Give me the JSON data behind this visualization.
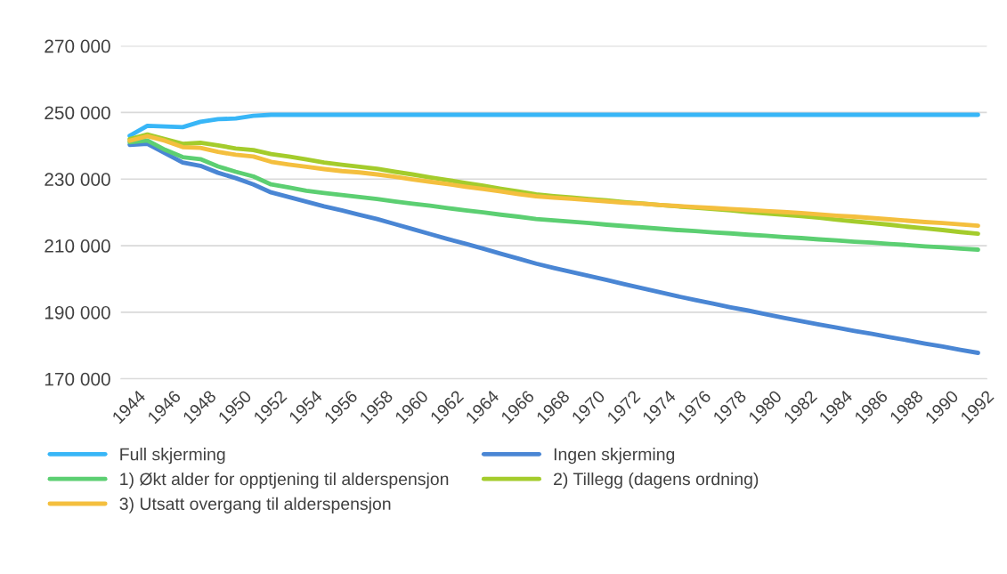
{
  "chart_data": {
    "type": "line",
    "categories": [
      "1944",
      null,
      "1946",
      null,
      "1948",
      null,
      "1950",
      null,
      "1952",
      null,
      "1954",
      null,
      "1956",
      null,
      "1958",
      null,
      "1960",
      null,
      "1962",
      null,
      "1964",
      null,
      "1966",
      null,
      "1968",
      null,
      "1970",
      null,
      "1972",
      null,
      "1974",
      null,
      "1976",
      null,
      "1978",
      null,
      "1980",
      null,
      "1982",
      null,
      "1984",
      null,
      "1986",
      null,
      "1988",
      null,
      "1990",
      null,
      "1992"
    ],
    "ylim": [
      170000,
      270000
    ],
    "yticks": [
      {
        "value": 170000,
        "label": "170 000"
      },
      {
        "value": 190000,
        "label": "190 000"
      },
      {
        "value": 210000,
        "label": "210 000"
      },
      {
        "value": 230000,
        "label": "230 000"
      },
      {
        "value": 250000,
        "label": "250 000"
      },
      {
        "value": 270000,
        "label": "270 000"
      }
    ],
    "grid": "y",
    "legend": "bottom",
    "marker": "none",
    "line_style": "solid",
    "series": [
      {
        "name": "Full skjerming",
        "color": "#38b6f7",
        "values": [
          243000,
          246000,
          245800,
          245600,
          247200,
          248000,
          248200,
          249000,
          249300,
          249300,
          249300,
          249300,
          249300,
          249300,
          249300,
          249300,
          249300,
          249300,
          249300,
          249300,
          249300,
          249300,
          249300,
          249300,
          249300,
          249300,
          249300,
          249300,
          249300,
          249300,
          249300,
          249300,
          249300,
          249300,
          249300,
          249300,
          249300,
          249300,
          249300,
          249300,
          249300,
          249300,
          249300,
          249300,
          249300,
          249300,
          249300,
          249300,
          249300
        ]
      },
      {
        "name": "Ingen skjerming",
        "color": "#4a86d4",
        "values": [
          240300,
          240600,
          237800,
          235000,
          234000,
          231900,
          230300,
          228400,
          226000,
          224600,
          223200,
          221800,
          220600,
          219300,
          218000,
          216500,
          215000,
          213500,
          212000,
          210600,
          209100,
          207600,
          206100,
          204600,
          203300,
          202100,
          200900,
          199700,
          198400,
          197200,
          196000,
          194800,
          193700,
          192600,
          191500,
          190500,
          189400,
          188300,
          187300,
          186300,
          185400,
          184400,
          183500,
          182500,
          181600,
          180600,
          179700,
          178700,
          177800
        ]
      },
      {
        "name": "1) Økt alder for opptjening til alderspensjon",
        "color": "#5ccf72",
        "values": [
          241100,
          241600,
          238800,
          236600,
          236000,
          233800,
          232200,
          230800,
          228400,
          227500,
          226500,
          225800,
          225200,
          224600,
          224000,
          223300,
          222600,
          222000,
          221300,
          220600,
          220000,
          219300,
          218700,
          218000,
          217600,
          217200,
          216800,
          216300,
          215900,
          215500,
          215100,
          214700,
          214400,
          214000,
          213700,
          213300,
          213000,
          212600,
          212300,
          211900,
          211600,
          211200,
          210900,
          210500,
          210200,
          209800,
          209500,
          209100,
          208800
        ]
      },
      {
        "name": "2) Tillegg (dagens ordning)",
        "color": "#a4cc2c",
        "values": [
          242000,
          243400,
          242000,
          240600,
          240900,
          240100,
          239200,
          238700,
          237500,
          236800,
          235900,
          235000,
          234300,
          233700,
          233100,
          232200,
          231400,
          230500,
          229700,
          228800,
          228000,
          227100,
          226300,
          225400,
          224900,
          224500,
          224000,
          223600,
          223100,
          222700,
          222200,
          221800,
          221400,
          221000,
          220600,
          220100,
          219700,
          219300,
          218900,
          218400,
          217800,
          217300,
          216800,
          216300,
          215700,
          215200,
          214700,
          214100,
          213600
        ]
      },
      {
        "name": "3) Utsatt overgang til alderspensjon",
        "color": "#f4bf3e",
        "values": [
          241500,
          242900,
          241500,
          239600,
          239400,
          238200,
          237300,
          236800,
          235200,
          234400,
          233700,
          233000,
          232400,
          232000,
          231400,
          230700,
          229900,
          229200,
          228500,
          227700,
          227000,
          226300,
          225500,
          224800,
          224400,
          224100,
          223700,
          223300,
          222900,
          222600,
          222200,
          221900,
          221600,
          221300,
          221000,
          220700,
          220400,
          220100,
          219800,
          219400,
          219000,
          218700,
          218300,
          217900,
          217500,
          217100,
          216800,
          216400,
          216000
        ]
      }
    ]
  }
}
